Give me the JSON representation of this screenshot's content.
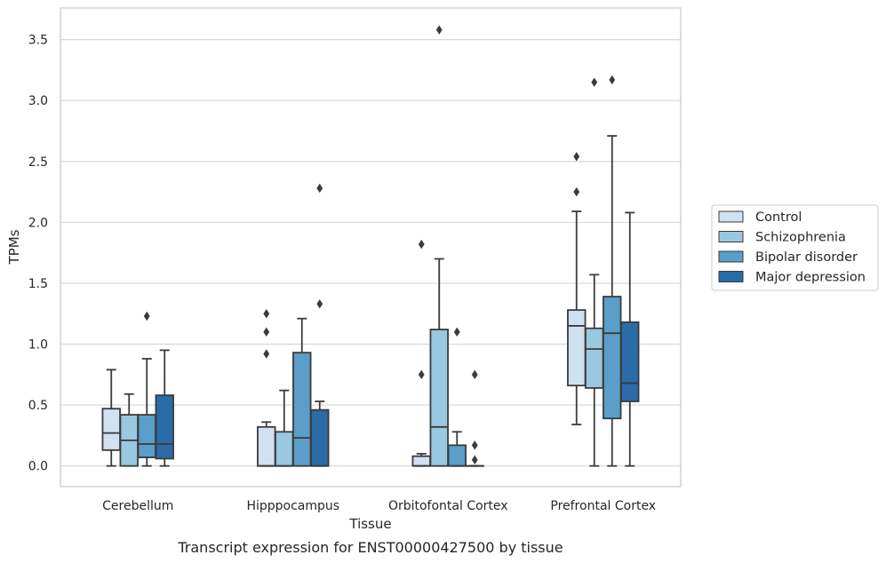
{
  "chart_data": {
    "type": "box",
    "xlabel": "Tissue",
    "ylabel": "TPMs",
    "caption": "Transcript expression for ENST00000427500 by tissue",
    "ylim": [
      -0.17,
      3.76
    ],
    "yticks": [
      "0.0",
      "0.5",
      "1.0",
      "1.5",
      "2.0",
      "2.5",
      "3.0",
      "3.5"
    ],
    "grid": "horizontal",
    "legend_placement": "right",
    "categories": [
      "Cerebellum",
      "Hipppocampus",
      "Orbitofontal Cortex",
      "Prefrontal Cortex"
    ],
    "series": [
      {
        "name": "Control",
        "color": "#d0e1f2",
        "boxes": [
          {
            "whislo": 0.0,
            "q1": 0.13,
            "med": 0.27,
            "q3": 0.47,
            "whishi": 0.79,
            "fliers": []
          },
          {
            "whislo": 0.0,
            "q1": 0.0,
            "med": 0.0,
            "q3": 0.32,
            "whishi": 0.36,
            "fliers": [
              0.92,
              1.1,
              1.25
            ]
          },
          {
            "whislo": 0.0,
            "q1": 0.0,
            "med": 0.0,
            "q3": 0.08,
            "whishi": 0.1,
            "fliers": [
              0.75,
              1.82
            ]
          },
          {
            "whislo": 0.34,
            "q1": 0.66,
            "med": 1.15,
            "q3": 1.28,
            "whishi": 2.09,
            "fliers": [
              2.25,
              2.54
            ]
          }
        ]
      },
      {
        "name": "Schizophrenia",
        "color": "#9ac8e0",
        "boxes": [
          {
            "whislo": 0.0,
            "q1": 0.0,
            "med": 0.21,
            "q3": 0.42,
            "whishi": 0.59,
            "fliers": []
          },
          {
            "whislo": 0.0,
            "q1": 0.0,
            "med": 0.0,
            "q3": 0.28,
            "whishi": 0.62,
            "fliers": []
          },
          {
            "whislo": 0.0,
            "q1": 0.0,
            "med": 0.32,
            "q3": 1.12,
            "whishi": 1.7,
            "fliers": [
              3.58
            ]
          },
          {
            "whislo": 0.0,
            "q1": 0.64,
            "med": 0.96,
            "q3": 1.13,
            "whishi": 1.57,
            "fliers": [
              3.15
            ]
          }
        ]
      },
      {
        "name": "Bipolar disorder",
        "color": "#5a9ec9",
        "boxes": [
          {
            "whislo": 0.0,
            "q1": 0.07,
            "med": 0.18,
            "q3": 0.42,
            "whishi": 0.88,
            "fliers": [
              1.23
            ]
          },
          {
            "whislo": 0.0,
            "q1": 0.0,
            "med": 0.23,
            "q3": 0.93,
            "whishi": 1.21,
            "fliers": []
          },
          {
            "whislo": 0.0,
            "q1": 0.0,
            "med": 0.0,
            "q3": 0.17,
            "whishi": 0.28,
            "fliers": [
              1.1
            ]
          },
          {
            "whislo": 0.0,
            "q1": 0.39,
            "med": 1.09,
            "q3": 1.39,
            "whishi": 2.71,
            "fliers": [
              3.17
            ]
          }
        ]
      },
      {
        "name": "Major depression",
        "color": "#2b6ba8",
        "boxes": [
          {
            "whislo": 0.0,
            "q1": 0.06,
            "med": 0.18,
            "q3": 0.58,
            "whishi": 0.95,
            "fliers": []
          },
          {
            "whislo": 0.0,
            "q1": 0.0,
            "med": 0.0,
            "q3": 0.46,
            "whishi": 0.53,
            "fliers": [
              1.33,
              2.28
            ]
          },
          {
            "whislo": 0.0,
            "q1": 0.0,
            "med": 0.0,
            "q3": 0.0,
            "whishi": 0.0,
            "fliers": [
              0.05,
              0.17,
              0.75
            ]
          },
          {
            "whislo": 0.0,
            "q1": 0.53,
            "med": 0.68,
            "q3": 1.18,
            "whishi": 2.08,
            "fliers": []
          }
        ]
      }
    ]
  }
}
